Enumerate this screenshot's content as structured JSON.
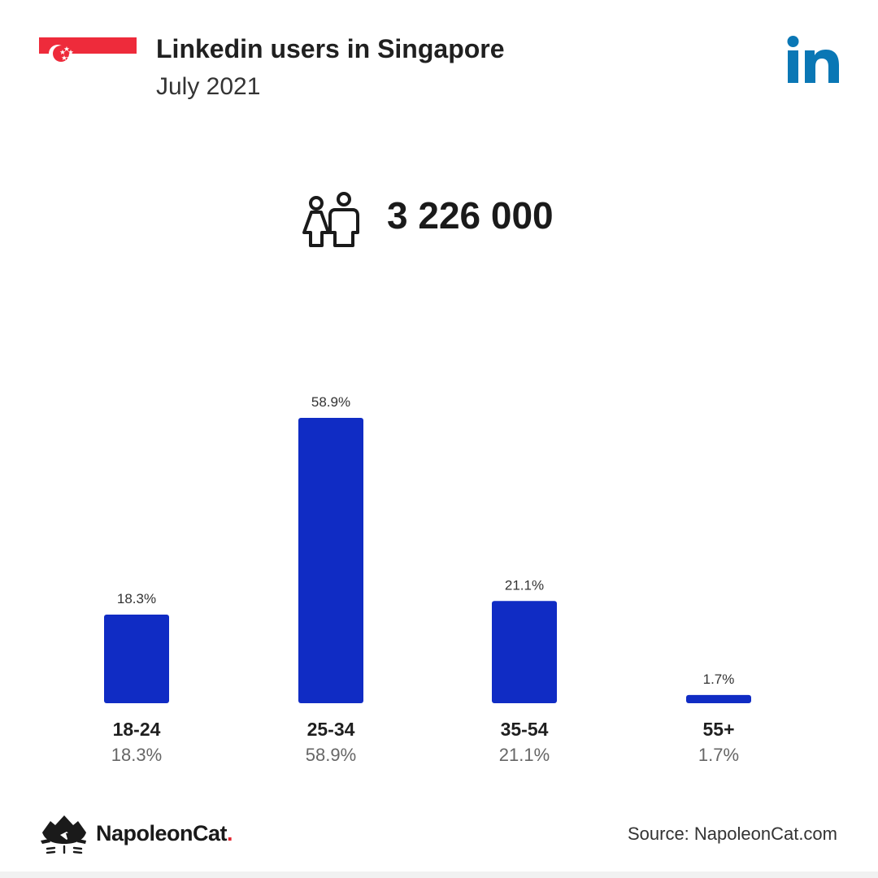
{
  "header": {
    "title": "Linkedin users in Singapore",
    "subtitle": "July 2021",
    "flag_icon": "singapore-flag-icon",
    "platform_icon": "linkedin-icon"
  },
  "summary": {
    "total_users": "3 226 000",
    "icon": "users-icon"
  },
  "colors": {
    "bar": "#102cc4",
    "linkedin": "#0a77b5",
    "flag_red": "#ee2b3b",
    "brand_dot": "#e3262f"
  },
  "chart_data": {
    "type": "bar",
    "categories": [
      "18-24",
      "25-34",
      "35-54",
      "55+"
    ],
    "values": [
      18.3,
      58.9,
      21.1,
      1.7
    ],
    "value_labels": [
      "18.3%",
      "58.9%",
      "21.1%",
      "1.7%"
    ],
    "title": "Linkedin users in Singapore",
    "subtitle": "July 2021",
    "ylim": [
      0,
      58.9
    ],
    "grid": false,
    "legend": "none"
  },
  "footer": {
    "brand_name": "NapoleonCat",
    "brand_dot": ".",
    "brand_icon": "napoleoncat-icon",
    "source": "Source: NapoleonCat.com"
  }
}
